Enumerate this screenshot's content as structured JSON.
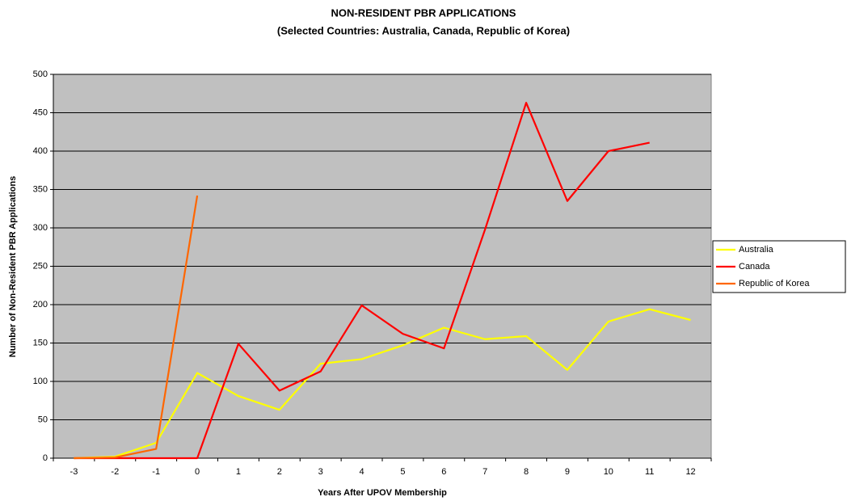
{
  "chart_data": {
    "type": "line",
    "title": "NON-RESIDENT PBR APPLICATIONS",
    "subtitle": "(Selected Countries:  Australia, Canada, Republic of Korea)",
    "x_label": "Years After UPOV Membership",
    "y_label": "Number of Non-Resident PBR Applications",
    "categories": [
      "-3",
      "-2",
      "-1",
      "0",
      "1",
      "2",
      "3",
      "4",
      "5",
      "6",
      "7",
      "8",
      "9",
      "10",
      "11",
      "12"
    ],
    "series": [
      {
        "name": "Australia",
        "color": "#ffff00",
        "values": [
          0,
          2,
          20,
          111,
          81,
          63,
          123,
          129,
          147,
          170,
          155,
          159,
          115,
          178,
          194,
          180
        ]
      },
      {
        "name": "Canada",
        "color": "#ff0000",
        "values": [
          0,
          0,
          0,
          0,
          149,
          88,
          113,
          199,
          162,
          143,
          298,
          463,
          335,
          400,
          411,
          null
        ]
      },
      {
        "name": "Republic of Korea",
        "color": "#ff6600",
        "values": [
          0,
          1,
          12,
          342,
          null,
          null,
          null,
          null,
          null,
          null,
          null,
          null,
          null,
          null,
          null,
          null
        ]
      }
    ],
    "ylim": [
      0,
      500
    ],
    "yticks": [
      0,
      50,
      100,
      150,
      200,
      250,
      300,
      350,
      400,
      450,
      500
    ],
    "grid": true,
    "plot_background": "#c0c0c0",
    "legend_position": "right"
  }
}
